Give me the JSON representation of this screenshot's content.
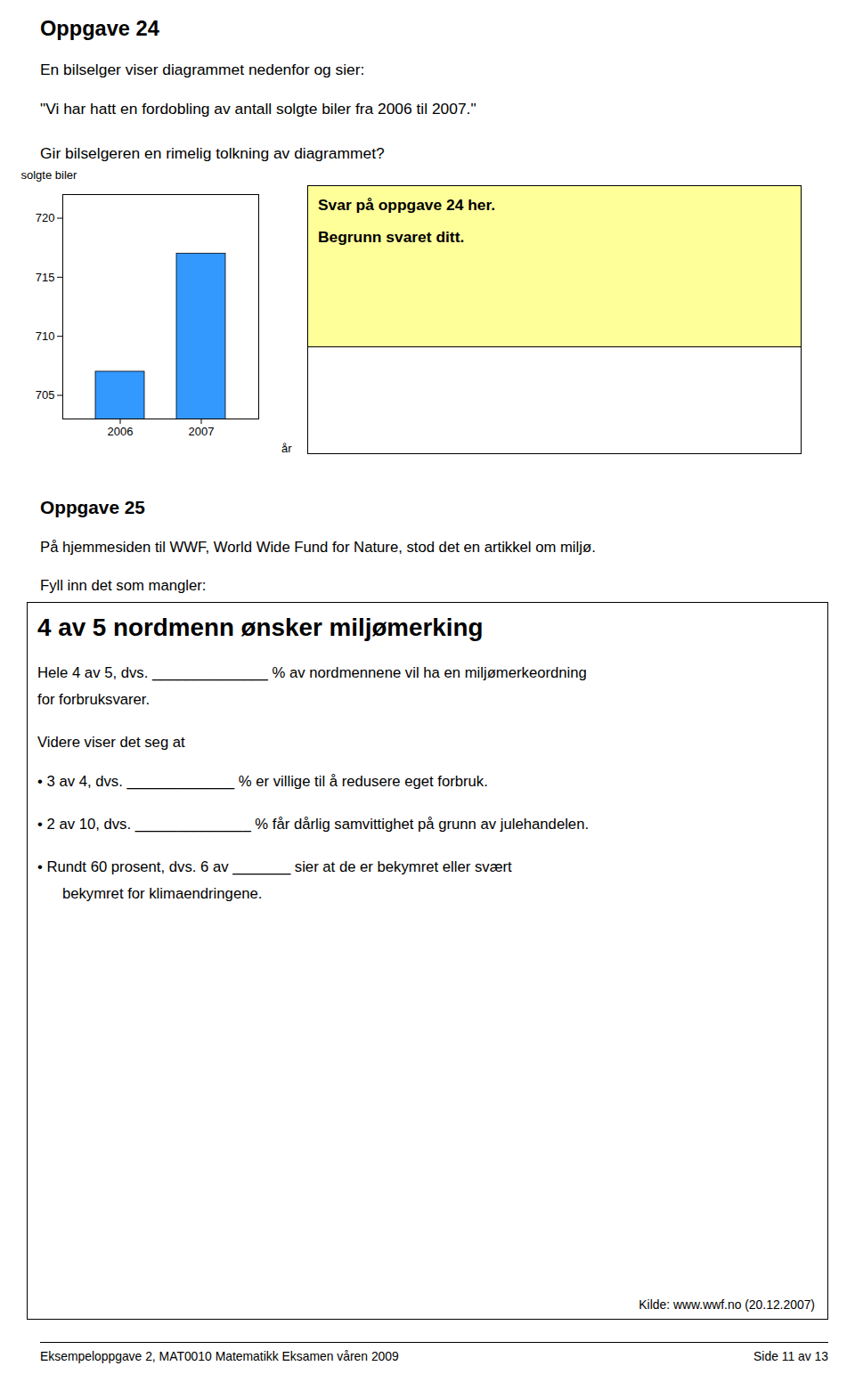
{
  "chart_data": {
    "type": "bar",
    "categories": [
      "2006",
      "2007"
    ],
    "values": [
      707,
      717
    ],
    "color": "#3399FF",
    "ylim": [
      703,
      722
    ],
    "yticks": [
      705,
      710,
      715,
      720
    ],
    "ylabel": "solgte biler",
    "xlabel": "år",
    "grid": false,
    "annotations": [
      "Oppgave 24",
      "En bilselger viser diagrammet nedenfor og sier:",
      "\"Vi har hatt en fordobling av antall solgte biler fra 2006 til 2007.\"",
      "Gir bilselgeren en rimelig tolkning av diagrammet?",
      "Svar på oppgave 24 her.",
      "Begrunn svaret ditt.",
      "Oppgave 25",
      "På hjemmesiden til WWF, World Wide Fund for Nature, stod det en artikkel om miljø.",
      "Fyll inn det som mangler:",
      "4 av 5 nordmenn ønsker miljømerking",
      "Hele 4 av 5, dvs. ______________ % av nordmennene vil ha en miljømerkeordning",
      "for forbruksvarer.",
      "Videre viser det seg at",
      "• 3 av 4, dvs. _____________ % er villige til å redusere eget forbruk.",
      "• 2 av 10, dvs. ______________ % får dårlig samvittighet på grunn av julehandelen.",
      "• Rundt 60 prosent, dvs. 6 av _______ sier at de er bekymret eller svært",
      "   bekymret for klimaendringene.",
      "Kilde: www.wwf.no (20.12.2007)",
      "Eksempeloppgave 2, MAT0010 Matematikk Eksamen våren 2009",
      "Side 11 av 13"
    ]
  }
}
